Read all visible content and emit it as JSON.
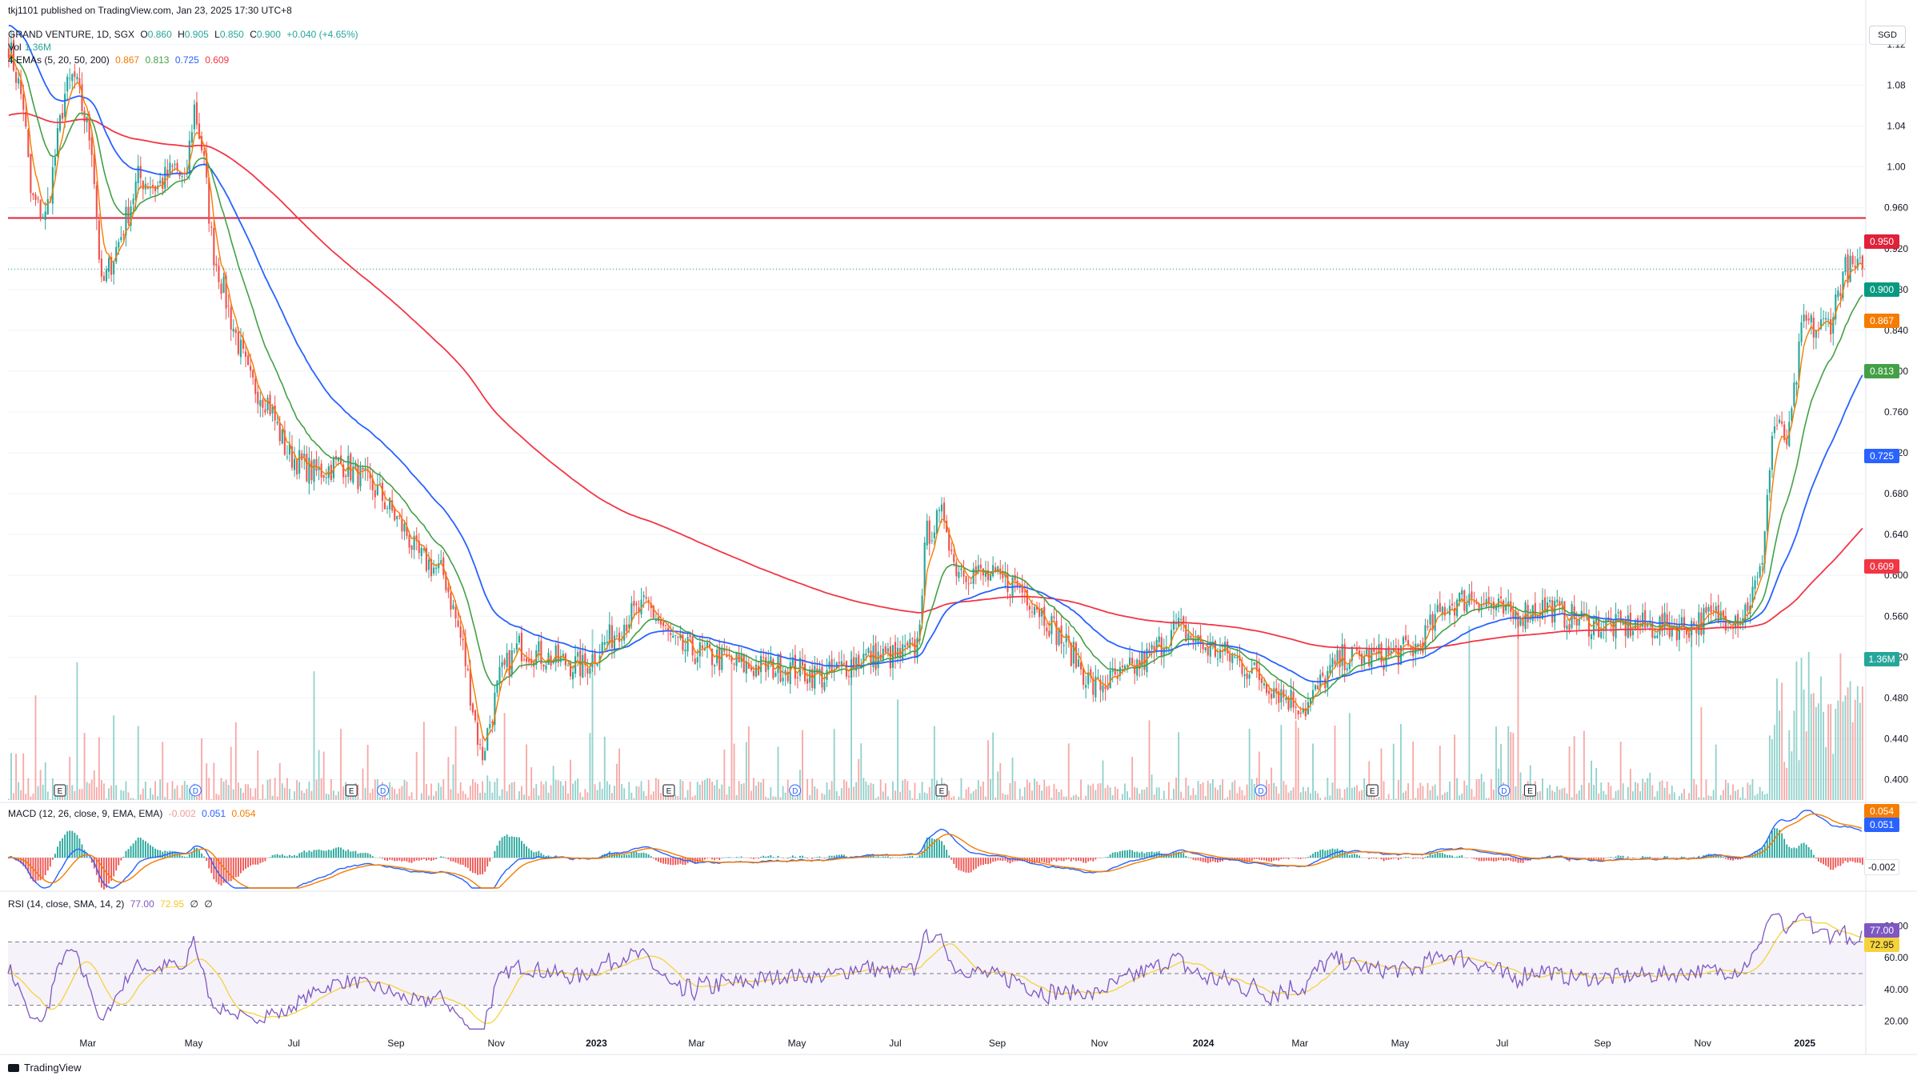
{
  "header": {
    "published": "tkj1101 published on TradingView.com, Jan 23, 2025 17:30 UTC+8",
    "symbol": "GRAND VENTURE, 1D, SGX",
    "ohlc": {
      "o_label": "O",
      "o": "0.860",
      "h_label": "H",
      "h": "0.905",
      "l_label": "L",
      "l": "0.850",
      "c_label": "C",
      "c": "0.900",
      "chg": "+0.040 (+4.65%)"
    },
    "vol_label": "Vol",
    "vol_value": "1.36M",
    "ema_label": "4 EMAs (5, 20, 50, 200)",
    "ema_values": [
      "0.867",
      "0.813",
      "0.725",
      "0.609"
    ]
  },
  "currency": "SGD",
  "colors": {
    "up": "#26a69a",
    "down": "#ef5350",
    "ema5": "#f57c00",
    "ema20": "#43a047",
    "ema50": "#2962ff",
    "ema200": "#f23645",
    "hline": "#e0213a",
    "macd": "#2962ff",
    "signal": "#f57c00",
    "rsi": "#7e57c2",
    "rsi_ma": "#f5d33b"
  },
  "macd_panel": {
    "label": "MACD (12, 26, close, 9, EMA, EMA)",
    "values": [
      "-0.002",
      "0.051",
      "0.054"
    ]
  },
  "rsi_panel": {
    "label": "RSI (14, close, SMA, 14, 2)",
    "values": [
      "77.00",
      "72.95",
      "∅",
      "∅"
    ]
  },
  "price_badges": {
    "hline": "0.950",
    "close": "0.900",
    "ema5": "0.867",
    "ema20": "0.813",
    "ema50": "0.725",
    "ema200": "0.609",
    "vol": "1.36M",
    "macd_signal": "0.054",
    "macd": "0.051",
    "macd_hist": "-0.002",
    "rsi": "77.00",
    "rsi_ma": "72.95"
  },
  "footer": {
    "brand": "TradingView"
  },
  "chart_data": {
    "type": "candlestick",
    "symbol": "GRAND VENTURE",
    "interval": "1D",
    "exchange": "SGX",
    "price_axis": {
      "min": 0.38,
      "max": 1.14,
      "ticks": [
        "1.12",
        "1.08",
        "1.04",
        "1.00",
        "0.960",
        "0.920",
        "0.880",
        "0.840",
        "0.800",
        "0.760",
        "0.720",
        "0.680",
        "0.640",
        "0.600",
        "0.560",
        "0.520",
        "0.480",
        "0.440",
        "0.400"
      ]
    },
    "x_ticks": [
      "Mar",
      "May",
      "Jul",
      "Sep",
      "Nov",
      "2023",
      "Mar",
      "May",
      "Jul",
      "Sep",
      "Nov",
      "2024",
      "Mar",
      "May",
      "Jul",
      "Sep",
      "Nov",
      "2025"
    ],
    "horizontal_line": 0.95,
    "price_path": [
      [
        0,
        1.12
      ],
      [
        0.008,
        1.06
      ],
      [
        0.012,
        0.97
      ],
      [
        0.02,
        0.95
      ],
      [
        0.03,
        1.07
      ],
      [
        0.035,
        1.09
      ],
      [
        0.045,
        1.02
      ],
      [
        0.05,
        0.88
      ],
      [
        0.06,
        0.93
      ],
      [
        0.07,
        0.99
      ],
      [
        0.08,
        0.98
      ],
      [
        0.09,
        1.0
      ],
      [
        0.095,
        0.98
      ],
      [
        0.1,
        1.06
      ],
      [
        0.105,
        1.01
      ],
      [
        0.11,
        0.92
      ],
      [
        0.12,
        0.85
      ],
      [
        0.13,
        0.79
      ],
      [
        0.14,
        0.77
      ],
      [
        0.15,
        0.72
      ],
      [
        0.165,
        0.7
      ],
      [
        0.18,
        0.71
      ],
      [
        0.2,
        0.68
      ],
      [
        0.215,
        0.64
      ],
      [
        0.22,
        0.62
      ],
      [
        0.235,
        0.6
      ],
      [
        0.245,
        0.53
      ],
      [
        0.255,
        0.42
      ],
      [
        0.265,
        0.5
      ],
      [
        0.275,
        0.53
      ],
      [
        0.29,
        0.52
      ],
      [
        0.31,
        0.51
      ],
      [
        0.325,
        0.54
      ],
      [
        0.335,
        0.56
      ],
      [
        0.345,
        0.57
      ],
      [
        0.36,
        0.53
      ],
      [
        0.38,
        0.52
      ],
      [
        0.4,
        0.51
      ],
      [
        0.42,
        0.51
      ],
      [
        0.44,
        0.5
      ],
      [
        0.46,
        0.52
      ],
      [
        0.48,
        0.52
      ],
      [
        0.49,
        0.53
      ],
      [
        0.495,
        0.64
      ],
      [
        0.505,
        0.66
      ],
      [
        0.51,
        0.61
      ],
      [
        0.525,
        0.6
      ],
      [
        0.545,
        0.59
      ],
      [
        0.555,
        0.57
      ],
      [
        0.575,
        0.52
      ],
      [
        0.585,
        0.49
      ],
      [
        0.6,
        0.5
      ],
      [
        0.615,
        0.52
      ],
      [
        0.63,
        0.55
      ],
      [
        0.645,
        0.53
      ],
      [
        0.66,
        0.52
      ],
      [
        0.675,
        0.5
      ],
      [
        0.69,
        0.48
      ],
      [
        0.7,
        0.47
      ],
      [
        0.71,
        0.5
      ],
      [
        0.72,
        0.52
      ],
      [
        0.74,
        0.52
      ],
      [
        0.76,
        0.53
      ],
      [
        0.775,
        0.57
      ],
      [
        0.79,
        0.58
      ],
      [
        0.81,
        0.56
      ],
      [
        0.83,
        0.57
      ],
      [
        0.84,
        0.56
      ],
      [
        0.86,
        0.55
      ],
      [
        0.875,
        0.55
      ],
      [
        0.89,
        0.55
      ],
      [
        0.905,
        0.55
      ],
      [
        0.92,
        0.56
      ],
      [
        0.935,
        0.56
      ],
      [
        0.945,
        0.6
      ],
      [
        0.952,
        0.75
      ],
      [
        0.96,
        0.73
      ],
      [
        0.968,
        0.85
      ],
      [
        0.975,
        0.84
      ],
      [
        0.983,
        0.85
      ],
      [
        0.99,
        0.9
      ]
    ],
    "volume_axis_max": "1.36M",
    "macd": {
      "macd": 0.051,
      "signal": 0.054,
      "histogram": -0.002
    },
    "rsi": {
      "value": 77.0,
      "ma": 72.95,
      "levels": [
        70,
        50,
        30
      ],
      "ticks": [
        "80.00",
        "60.00",
        "40.00",
        "20.00"
      ]
    },
    "events": [
      "E",
      "D",
      "E",
      "D",
      "E",
      "D",
      "E",
      "D",
      "E",
      "D",
      "E"
    ]
  }
}
